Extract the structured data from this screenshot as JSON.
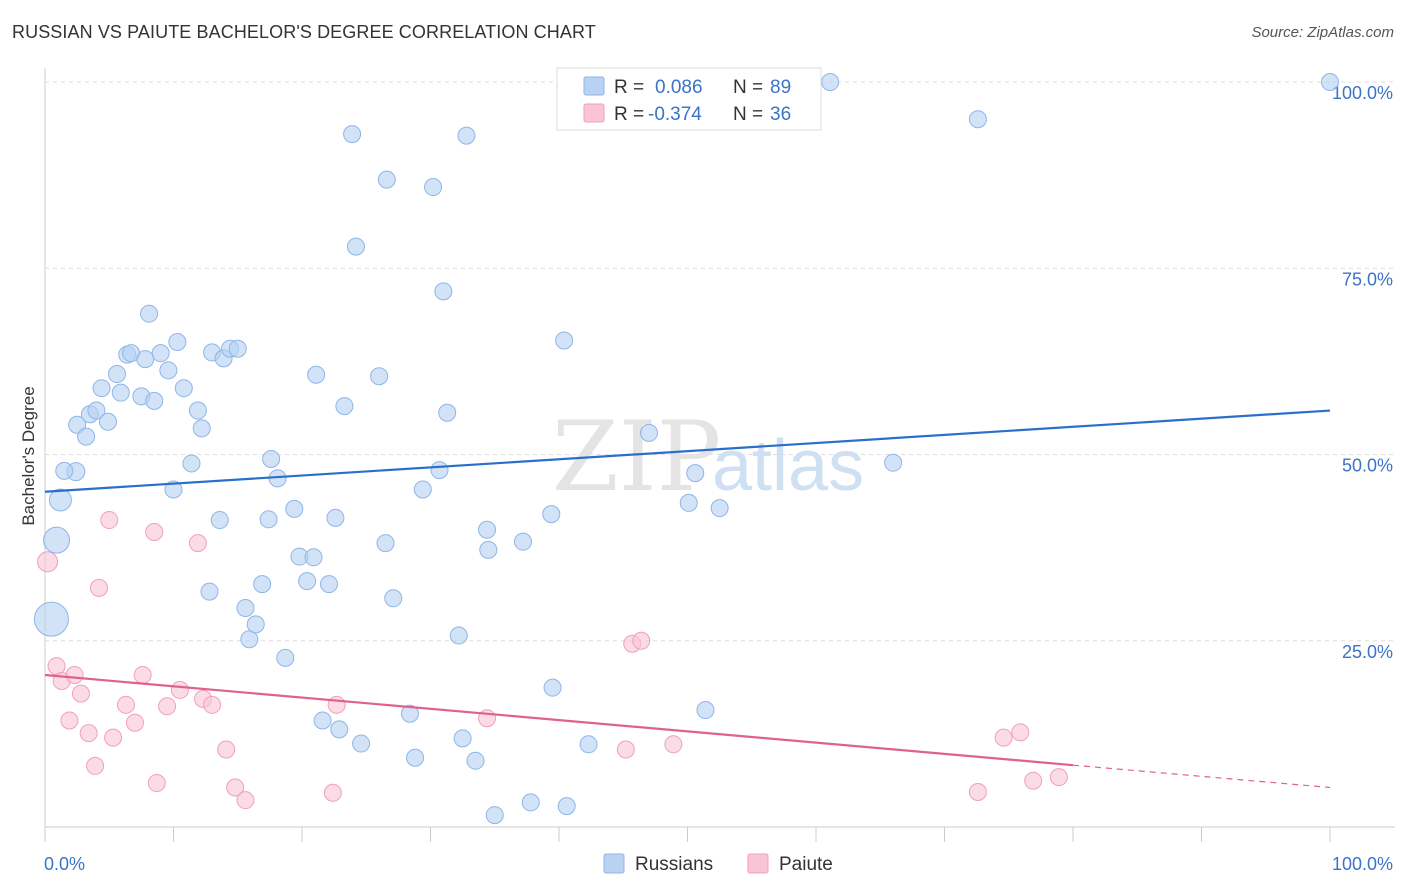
{
  "header": {
    "title": "RUSSIAN VS PAIUTE BACHELOR'S DEGREE CORRELATION CHART",
    "source": "Source: ZipAtlas.com"
  },
  "watermark": {
    "zip": "ZIP",
    "atlas": "atlas"
  },
  "legend": {
    "rows": [
      {
        "r_label": "R =",
        "r_value": "0.086",
        "n_label": "N =",
        "n_value": "89"
      },
      {
        "r_label": "R =",
        "r_value": "-0.374",
        "n_label": "N =",
        "n_value": "36"
      }
    ]
  },
  "colors": {
    "russians_fill": "#b7d2f2",
    "russians_stroke": "#8fb5e8",
    "russians_line": "#2a6fcc",
    "paiute_fill": "#f9c5d6",
    "paiute_stroke": "#f0a0bb",
    "paiute_line": "#e0608e",
    "tick": "#3b73c9"
  },
  "chart_data": {
    "type": "scatter",
    "title": "RUSSIAN VS PAIUTE BACHELOR'S DEGREE CORRELATION CHART",
    "xlabel": "",
    "ylabel": "Bachelor's Degree",
    "xlim": [
      0,
      100
    ],
    "ylim": [
      0,
      100
    ],
    "x_tick_labels": [
      "0.0%",
      "100.0%"
    ],
    "y_tick_labels": [
      "25.0%",
      "50.0%",
      "75.0%",
      "100.0%"
    ],
    "y_ticks": [
      25,
      50,
      75,
      100
    ],
    "grid": true,
    "legend_position": "top-center",
    "series": [
      {
        "name": "Russians",
        "r": 0.086,
        "n": 89,
        "trend": {
          "x": [
            0,
            100
          ],
          "y": [
            45.0,
            55.9
          ]
        },
        "points": [
          [
            2.4,
            47.7
          ],
          [
            1.5,
            47.8
          ],
          [
            1.2,
            43.9
          ],
          [
            0.9,
            38.5
          ],
          [
            0.5,
            27.9
          ],
          [
            2.5,
            54.0
          ],
          [
            3.2,
            52.4
          ],
          [
            3.5,
            55.4
          ],
          [
            4.0,
            55.9
          ],
          [
            4.9,
            54.4
          ],
          [
            4.4,
            58.9
          ],
          [
            5.6,
            60.8
          ],
          [
            5.9,
            58.3
          ],
          [
            6.4,
            63.4
          ],
          [
            6.7,
            63.6
          ],
          [
            7.5,
            57.8
          ],
          [
            7.8,
            62.8
          ],
          [
            8.1,
            68.9
          ],
          [
            8.5,
            57.2
          ],
          [
            9.0,
            63.6
          ],
          [
            9.6,
            61.3
          ],
          [
            10.3,
            65.1
          ],
          [
            10.8,
            58.9
          ],
          [
            11.9,
            55.9
          ],
          [
            12.2,
            53.5
          ],
          [
            13.0,
            63.7
          ],
          [
            13.9,
            62.9
          ],
          [
            14.4,
            64.2
          ],
          [
            15.0,
            64.2
          ],
          [
            10.0,
            45.3
          ],
          [
            11.4,
            48.8
          ],
          [
            12.8,
            31.6
          ],
          [
            13.6,
            41.2
          ],
          [
            15.6,
            29.4
          ],
          [
            15.9,
            25.2
          ],
          [
            16.4,
            27.2
          ],
          [
            16.9,
            32.6
          ],
          [
            17.4,
            41.3
          ],
          [
            17.6,
            49.4
          ],
          [
            18.1,
            46.8
          ],
          [
            18.7,
            22.7
          ],
          [
            19.4,
            42.7
          ],
          [
            19.8,
            36.3
          ],
          [
            20.4,
            33.0
          ],
          [
            20.9,
            36.2
          ],
          [
            21.1,
            60.7
          ],
          [
            21.6,
            14.3
          ],
          [
            22.1,
            32.6
          ],
          [
            22.6,
            41.5
          ],
          [
            22.9,
            13.1
          ],
          [
            23.3,
            56.5
          ],
          [
            23.9,
            93.0
          ],
          [
            24.2,
            77.9
          ],
          [
            24.6,
            11.2
          ],
          [
            26.0,
            60.5
          ],
          [
            26.5,
            38.1
          ],
          [
            26.6,
            86.9
          ],
          [
            27.1,
            30.7
          ],
          [
            28.4,
            15.2
          ],
          [
            28.8,
            9.3
          ],
          [
            29.4,
            45.3
          ],
          [
            30.2,
            85.9
          ],
          [
            30.7,
            47.9
          ],
          [
            31.0,
            71.9
          ],
          [
            31.3,
            55.6
          ],
          [
            32.2,
            25.7
          ],
          [
            32.5,
            11.9
          ],
          [
            32.8,
            92.8
          ],
          [
            33.5,
            8.9
          ],
          [
            34.4,
            39.9
          ],
          [
            34.5,
            37.2
          ],
          [
            35.0,
            1.6
          ],
          [
            37.2,
            38.3
          ],
          [
            37.8,
            3.3
          ],
          [
            39.4,
            42.0
          ],
          [
            39.5,
            18.7
          ],
          [
            40.4,
            65.3
          ],
          [
            40.6,
            2.8
          ],
          [
            42.3,
            11.1
          ],
          [
            47.0,
            52.9
          ],
          [
            50.1,
            43.5
          ],
          [
            50.6,
            47.5
          ],
          [
            51.4,
            15.7
          ],
          [
            52.5,
            42.8
          ],
          [
            59.3,
            100.0
          ],
          [
            61.1,
            100.0
          ],
          [
            66.0,
            48.9
          ],
          [
            72.6,
            95.0
          ],
          [
            100.0,
            100.0
          ]
        ]
      },
      {
        "name": "Paiute",
        "r": -0.374,
        "n": 36,
        "trend": {
          "x": [
            0,
            80
          ],
          "y": [
            20.4,
            8.3
          ]
        },
        "trend_dashed": {
          "x": [
            80,
            100
          ],
          "y": [
            8.3,
            5.3
          ]
        },
        "points": [
          [
            0.2,
            35.6
          ],
          [
            0.9,
            21.6
          ],
          [
            1.3,
            19.6
          ],
          [
            1.9,
            14.3
          ],
          [
            2.3,
            20.4
          ],
          [
            2.8,
            17.9
          ],
          [
            3.4,
            12.6
          ],
          [
            3.9,
            8.2
          ],
          [
            4.2,
            32.1
          ],
          [
            5.0,
            41.2
          ],
          [
            5.3,
            12.0
          ],
          [
            6.3,
            16.4
          ],
          [
            7.0,
            14.0
          ],
          [
            7.6,
            20.4
          ],
          [
            8.5,
            39.6
          ],
          [
            8.7,
            5.9
          ],
          [
            9.5,
            16.2
          ],
          [
            10.5,
            18.4
          ],
          [
            11.9,
            38.1
          ],
          [
            12.3,
            17.2
          ],
          [
            13.0,
            16.4
          ],
          [
            14.1,
            10.4
          ],
          [
            14.8,
            5.3
          ],
          [
            15.6,
            3.6
          ],
          [
            22.4,
            4.6
          ],
          [
            22.7,
            16.4
          ],
          [
            34.4,
            14.6
          ],
          [
            45.2,
            10.4
          ],
          [
            45.7,
            24.6
          ],
          [
            46.4,
            25.0
          ],
          [
            48.9,
            11.1
          ],
          [
            72.6,
            4.7
          ],
          [
            74.6,
            12.0
          ],
          [
            75.9,
            12.7
          ],
          [
            76.9,
            6.2
          ],
          [
            78.9,
            6.7
          ]
        ]
      }
    ]
  },
  "bottom_legend": {
    "russians": "Russians",
    "paiute": "Paiute"
  }
}
